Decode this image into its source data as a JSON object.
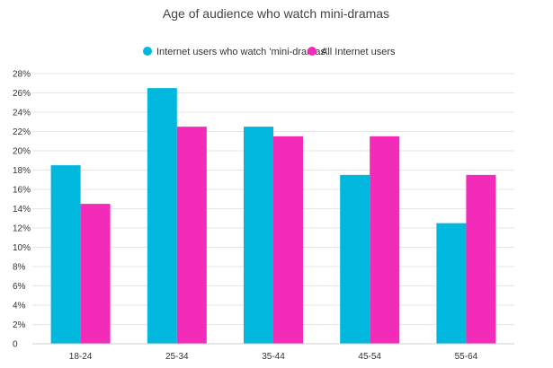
{
  "chart_data": {
    "type": "bar",
    "title": "Age of audience who watch mini-dramas",
    "categories": [
      "18-24",
      "25-34",
      "35-44",
      "45-54",
      "55-64"
    ],
    "series": [
      {
        "name": "Internet users who watch 'mini-dramas'",
        "color": "#00b8de",
        "values": [
          18.5,
          26.5,
          22.5,
          17.5,
          12.5
        ]
      },
      {
        "name": "All Internet users",
        "color": "#f22bb8",
        "values": [
          14.5,
          22.5,
          21.5,
          21.5,
          17.5
        ]
      }
    ],
    "ylim": [
      0,
      28
    ],
    "yticks": [
      0,
      2,
      4,
      6,
      8,
      10,
      12,
      14,
      16,
      18,
      20,
      22,
      24,
      26,
      28
    ],
    "ytick_labels": [
      "0",
      "2%",
      "4%",
      "6%",
      "8%",
      "10%",
      "12%",
      "14%",
      "16%",
      "18%",
      "20%",
      "22%",
      "24%",
      "26%",
      "28%"
    ],
    "xlabel": "",
    "ylabel": "",
    "grid": true,
    "legend_position": "top-center"
  }
}
